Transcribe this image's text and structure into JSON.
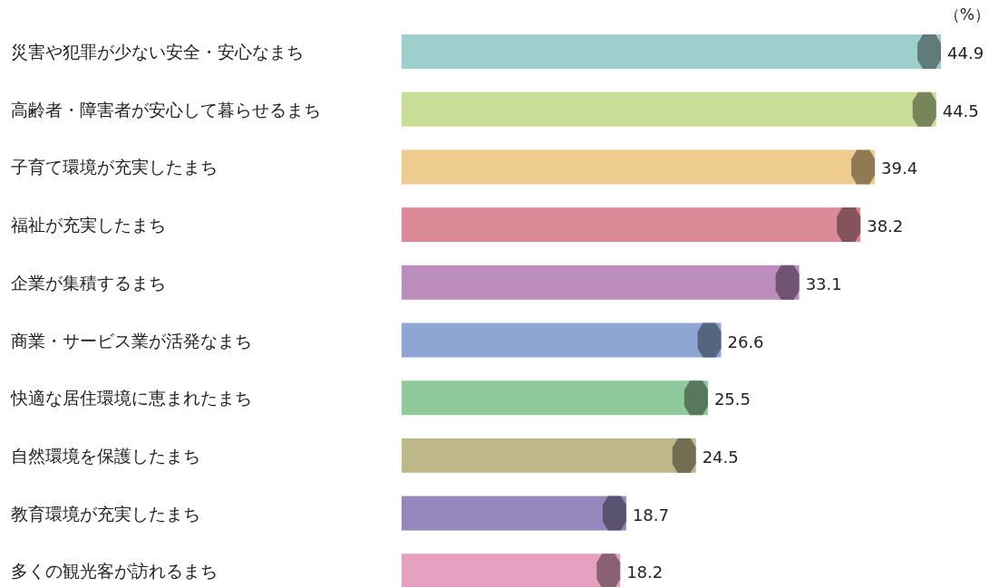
{
  "chart_data": {
    "type": "bar",
    "orientation": "horizontal",
    "data_labels": true,
    "categories": [
      "災害や犯罪が少ない安全・安心なまち",
      "高齢者・障害者が安心して暮らせるまち",
      "子育て環境が充実したまち",
      "福祉が充実したまち",
      "企業が集積するまち",
      "商業・サービス業が活発なまち",
      "快適な居住環境に恵まれたまち",
      "自然環境を保護したまち",
      "教育環境が充実したまち",
      "多くの観光客が訪れるまち"
    ],
    "values": [
      44.9,
      44.5,
      39.4,
      38.2,
      33.1,
      26.6,
      25.5,
      24.5,
      18.7,
      18.2
    ],
    "colors": [
      "#9fcfcc",
      "#c8de96",
      "#eecb8e",
      "#dc8a97",
      "#bc8cbd",
      "#8ea6d4",
      "#8fc99c",
      "#beb78a",
      "#9688bd",
      "#e6a0c0"
    ],
    "annotations": [
      "（%）"
    ]
  }
}
